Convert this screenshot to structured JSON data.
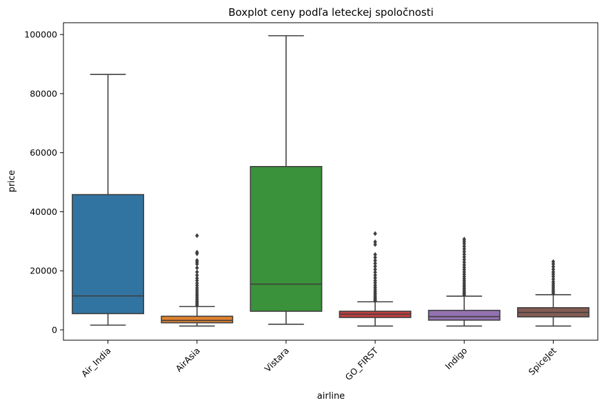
{
  "chart_data": {
    "type": "boxplot",
    "title": "Boxplot ceny podľa leteckej spoločnosti",
    "xlabel": "airline",
    "ylabel": "price",
    "ylim": [
      -3500,
      104000
    ],
    "yticks": [
      0,
      20000,
      40000,
      60000,
      80000,
      100000
    ],
    "ytick_labels": [
      "0",
      "20000",
      "40000",
      "60000",
      "80000",
      "100000"
    ],
    "grid": false,
    "legend": "none",
    "categories": [
      "Air_India",
      "AirAsia",
      "Vistara",
      "GO_FIRST",
      "Indigo",
      "SpiceJet"
    ],
    "boxes": [
      {
        "category": "Air_India",
        "whisker_low": 1600,
        "q1": 5500,
        "median": 11500,
        "q3": 45800,
        "whisker_high": 86500,
        "outliers": [],
        "color": "#3274a1"
      },
      {
        "category": "AirAsia",
        "whisker_low": 1300,
        "q1": 2400,
        "median": 3200,
        "q3": 4600,
        "whisker_high": 7900,
        "color": "#e1812c",
        "outliers": [
          8200,
          8700,
          9200,
          9700,
          10300,
          10900,
          11500,
          12100,
          12800,
          13500,
          14200,
          15000,
          15800,
          16700,
          17500,
          18500,
          19600,
          21000,
          22300,
          22900,
          23500,
          25800,
          26300,
          31900
        ]
      },
      {
        "category": "Vistara",
        "whisker_low": 1900,
        "q1": 6300,
        "median": 15500,
        "q3": 55300,
        "whisker_high": 99600,
        "outliers": [],
        "color": "#3a923a"
      },
      {
        "category": "GO_FIRST",
        "whisker_low": 1300,
        "q1": 4200,
        "median": 5300,
        "q3": 6300,
        "whisker_high": 9500,
        "color": "#c03d3e",
        "outliers": [
          9800,
          10200,
          10700,
          11200,
          11800,
          12400,
          13000,
          13700,
          14400,
          15100,
          15900,
          16700,
          17600,
          18500,
          19500,
          20500,
          21500,
          22500,
          23500,
          24500,
          25500,
          28900,
          29800,
          32600
        ]
      },
      {
        "category": "Indigo",
        "whisker_low": 1300,
        "q1": 3300,
        "median": 4500,
        "q3": 6600,
        "whisker_high": 11400,
        "color": "#9372b2",
        "outliers": [
          11800,
          12300,
          12800,
          13400,
          14000,
          14600,
          15200,
          15900,
          16600,
          17300,
          18000,
          18800,
          19600,
          20400,
          21200,
          22000,
          22900,
          23800,
          24700,
          25600,
          26500,
          27400,
          28300,
          29200,
          30000,
          30700
        ]
      },
      {
        "category": "SpiceJet",
        "whisker_low": 1300,
        "q1": 4400,
        "median": 5900,
        "q3": 7500,
        "whisker_high": 11900,
        "color": "#845b53",
        "outliers": [
          12300,
          12900,
          13500,
          14200,
          14900,
          15600,
          16300,
          17200,
          18100,
          18900,
          19600,
          20500,
          21400,
          22300,
          23100
        ]
      }
    ]
  }
}
